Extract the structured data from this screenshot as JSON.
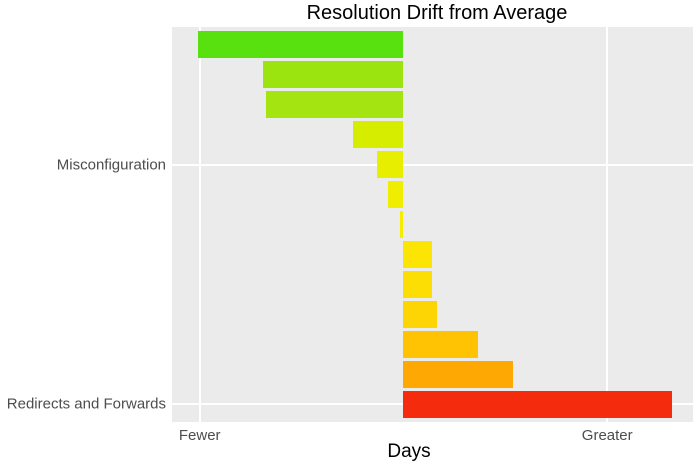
{
  "page": {
    "title": "Resolution Drift from Average"
  },
  "chart_data": {
    "type": "bar",
    "orientation": "horizontal",
    "title": "Resolution Drift from Average",
    "xlabel": "Days",
    "ylabel": "",
    "legend": "none",
    "grid": true,
    "panel_bg": "#EBEBEB",
    "grid_color": "#FFFFFF",
    "axis_text_color": "#4D4D4D",
    "title_color": "#000000",
    "xlim": [
      -1.136,
      1.421
    ],
    "x_ticks": [
      {
        "value": -1,
        "label": "Fewer"
      },
      {
        "value": 1,
        "label": "Greater"
      }
    ],
    "categories": [
      "",
      "",
      "",
      "",
      "Misconfiguration",
      "",
      "",
      "",
      "",
      "",
      "",
      "",
      "Redirects and Forwards"
    ],
    "values": [
      -1.01,
      -0.69,
      -0.675,
      -0.25,
      -0.13,
      -0.076,
      -0.015,
      0.14,
      0.14,
      0.165,
      0.365,
      0.54,
      1.32
    ],
    "bar_colors": [
      "#59E00F",
      "#9CE410",
      "#A4E410",
      "#D7ED00",
      "#E7EE00",
      "#F0EE00",
      "#F6EC00",
      "#FCE505",
      "#FCDE05",
      "#FDD505",
      "#FFC303",
      "#FEA903",
      "#F42B0C"
    ]
  }
}
